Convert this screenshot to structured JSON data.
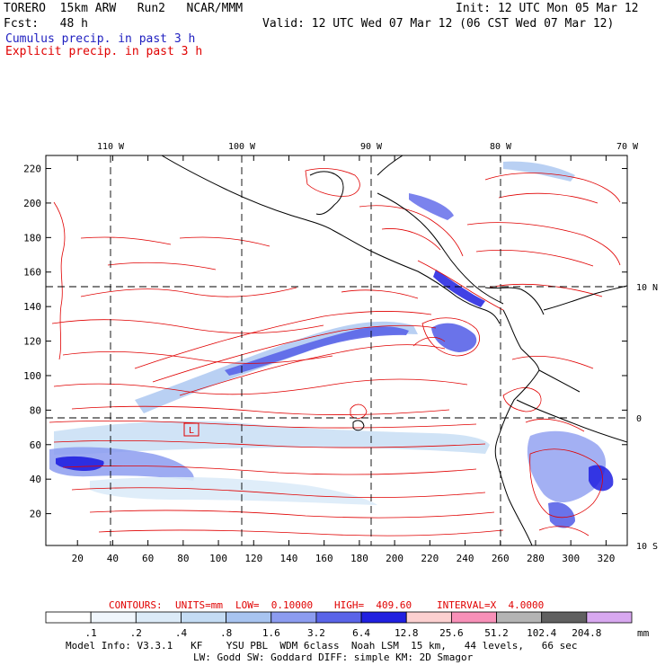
{
  "header": {
    "line1_left": "TORERO  15km ARW   Run2   NCAR/MMM",
    "line1_right": "Init: 12 UTC Mon 05 Mar 12",
    "line2_left": "Fcst:   48 h",
    "line2_right": "Valid: 12 UTC Wed 07 Mar 12 (06 CST Wed 07 Mar 12)",
    "cumulus_label": "Cumulus precip. in past 3 h",
    "explicit_label": "Explicit precip. in past 3 h"
  },
  "colors": {
    "cumulus": "#2020c0",
    "explicit": "#e00000",
    "grid": "#000000"
  },
  "map": {
    "lon_labels": [
      "110 W",
      "100 W",
      "90 W",
      "80 W",
      "70 W"
    ],
    "lat_labels": [
      "10 N",
      "0",
      "10 S"
    ],
    "x_ticks": [
      "20",
      "40",
      "60",
      "80",
      "100",
      "120",
      "140",
      "160",
      "180",
      "200",
      "220",
      "240",
      "260",
      "280",
      "300",
      "320"
    ],
    "y_ticks": [
      "220",
      "200",
      "180",
      "160",
      "140",
      "120",
      "100",
      "80",
      "60",
      "40",
      "20"
    ],
    "low_marker": "L"
  },
  "contour_info": {
    "contours": "CONTOURS:",
    "units": "UNITS=mm",
    "low": "LOW=  0.10000",
    "high": "HIGH=  409.60",
    "interval": "INTERVAL=X  4.0000"
  },
  "colorbar": {
    "labels": [
      ".1",
      ".2",
      ".4",
      ".8",
      "1.6",
      "3.2",
      "6.4",
      "12.8",
      "25.6",
      "51.2",
      "102.4",
      "204.8"
    ],
    "unit": "mm",
    "colors": [
      "#ffffff",
      "#f0f6fc",
      "#dcebf8",
      "#c4dcf4",
      "#a8c4f0",
      "#8c9cf0",
      "#5a64e8",
      "#2020e0",
      "#fcd0d0",
      "#f890b8",
      "#b4b4b4",
      "#606060",
      "#d8a8f0"
    ]
  },
  "footer": {
    "line1": "Model Info: V3.3.1   KF    YSU PBL  WDM 6class  Noah LSM  15 km,   44 levels,   66 sec",
    "line2": "LW: Godd SW: Goddard DIFF: simple KM: 2D Smagor"
  }
}
